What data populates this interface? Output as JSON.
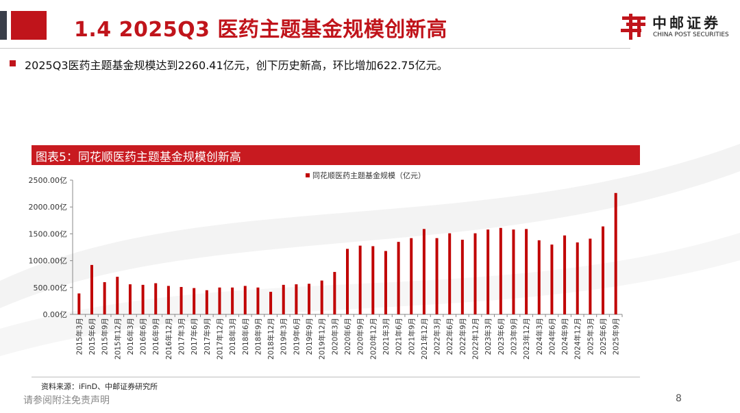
{
  "slide": {
    "title": "1.4 2025Q3 医药主题基金规模创新高",
    "bullet": "2025Q3医药主题基金规模达到2260.41亿元，创下历史新高，环比增加622.75亿元。",
    "chart_caption": "图表5：同花顺医药主题基金规模创新高",
    "source": "资料来源：iFinD、中邮证券研究所",
    "footer_note": "请参阅附注免责声明",
    "page_number": "8"
  },
  "logo": {
    "name_cn": "中邮证券",
    "name_en": "CHINA POST SECURITIES"
  },
  "colors": {
    "accent": "#c0141b",
    "bar": "#c00000",
    "dark": "#3a3f4a"
  },
  "chart_data": {
    "type": "bar",
    "legend": "同花顺医药主题基金规模（亿元）",
    "legend_position": "top",
    "ylim": [
      0,
      2500
    ],
    "yticks": [
      "0.00亿",
      "500.00亿",
      "1000.00亿",
      "1500.00亿",
      "2000.00亿",
      "2500.00亿"
    ],
    "grid": false,
    "categories": [
      "2015年3月",
      "2015年6月",
      "2015年9月",
      "2015年12月",
      "2016年3月",
      "2016年6月",
      "2016年9月",
      "2016年12月",
      "2017年3月",
      "2017年6月",
      "2017年9月",
      "2017年12月",
      "2018年3月",
      "2018年6月",
      "2018年9月",
      "2018年12月",
      "2019年3月",
      "2019年6月",
      "2019年9月",
      "2019年12月",
      "2020年3月",
      "2020年6月",
      "2020年9月",
      "2020年12月",
      "2021年3月",
      "2021年6月",
      "2021年9月",
      "2021年12月",
      "2022年3月",
      "2022年6月",
      "2022年9月",
      "2022年12月",
      "2023年3月",
      "2023年6月",
      "2023年9月",
      "2023年12月",
      "2024年3月",
      "2024年6月",
      "2024年9月",
      "2024年12月",
      "2025年3月",
      "2025年6月",
      "2025年9月"
    ],
    "values": [
      390,
      920,
      600,
      700,
      560,
      550,
      580,
      530,
      510,
      490,
      450,
      500,
      500,
      530,
      500,
      420,
      550,
      560,
      570,
      630,
      790,
      1220,
      1280,
      1270,
      1180,
      1350,
      1420,
      1590,
      1420,
      1510,
      1390,
      1510,
      1580,
      1610,
      1580,
      1590,
      1380,
      1300,
      1470,
      1340,
      1410,
      1637.66,
      2260.41
    ]
  }
}
